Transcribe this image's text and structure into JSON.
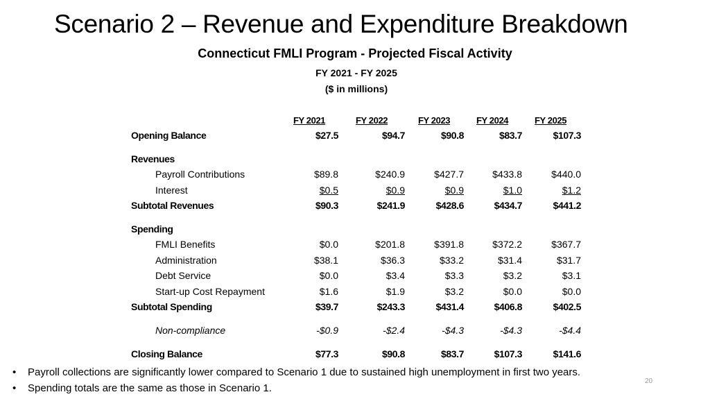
{
  "slide": {
    "title": "Scenario 2 – Revenue and Expenditure Breakdown",
    "subtitle_main": "Connecticut FMLI Program - Projected Fiscal Activity",
    "subtitle_years": "FY 2021 - FY 2025",
    "subtitle_units": "($ in millions)",
    "page_number": "20"
  },
  "table": {
    "columns": [
      "FY 2021",
      "FY 2022",
      "FY 2023",
      "FY 2024",
      "FY 2025"
    ],
    "rows": [
      {
        "label": "Opening Balance",
        "values": [
          "$27.5",
          "$94.7",
          "$90.8",
          "$83.7",
          "$107.3"
        ]
      },
      {
        "label": "Revenues",
        "values": []
      },
      {
        "label": "Payroll Contributions",
        "values": [
          "$89.8",
          "$240.9",
          "$427.7",
          "$433.8",
          "$440.0"
        ]
      },
      {
        "label": "Interest",
        "values": [
          "$0.5",
          "$0.9",
          "$0.9",
          "$1.0",
          "$1.2"
        ]
      },
      {
        "label": "Subtotal Revenues",
        "values": [
          "$90.3",
          "$241.9",
          "$428.6",
          "$434.7",
          "$441.2"
        ]
      },
      {
        "label": "Spending",
        "values": []
      },
      {
        "label": "FMLI Benefits",
        "values": [
          "$0.0",
          "$201.8",
          "$391.8",
          "$372.2",
          "$367.7"
        ]
      },
      {
        "label": "Administration",
        "values": [
          "$38.1",
          "$36.3",
          "$33.2",
          "$31.4",
          "$31.7"
        ]
      },
      {
        "label": "Debt Service",
        "values": [
          "$0.0",
          "$3.4",
          "$3.3",
          "$3.2",
          "$3.1"
        ]
      },
      {
        "label": "Start-up Cost Repayment",
        "values": [
          "$1.6",
          "$1.9",
          "$3.2",
          "$0.0",
          "$0.0"
        ]
      },
      {
        "label": "Subtotal Spending",
        "values": [
          "$39.7",
          "$243.3",
          "$431.4",
          "$406.8",
          "$402.5"
        ]
      },
      {
        "label": "Non-compliance",
        "values": [
          "-$0.9",
          "-$2.4",
          "-$4.3",
          "-$4.3",
          "-$4.4"
        ]
      },
      {
        "label": "Closing Balance",
        "values": [
          "$77.3",
          "$90.8",
          "$83.7",
          "$107.3",
          "$141.6"
        ]
      }
    ]
  },
  "bullets": [
    "Payroll collections are significantly lower compared to Scenario 1 due to sustained high unemployment in first two years.",
    "Spending totals are the same as those in Scenario 1."
  ],
  "bullet_symbol": "•"
}
